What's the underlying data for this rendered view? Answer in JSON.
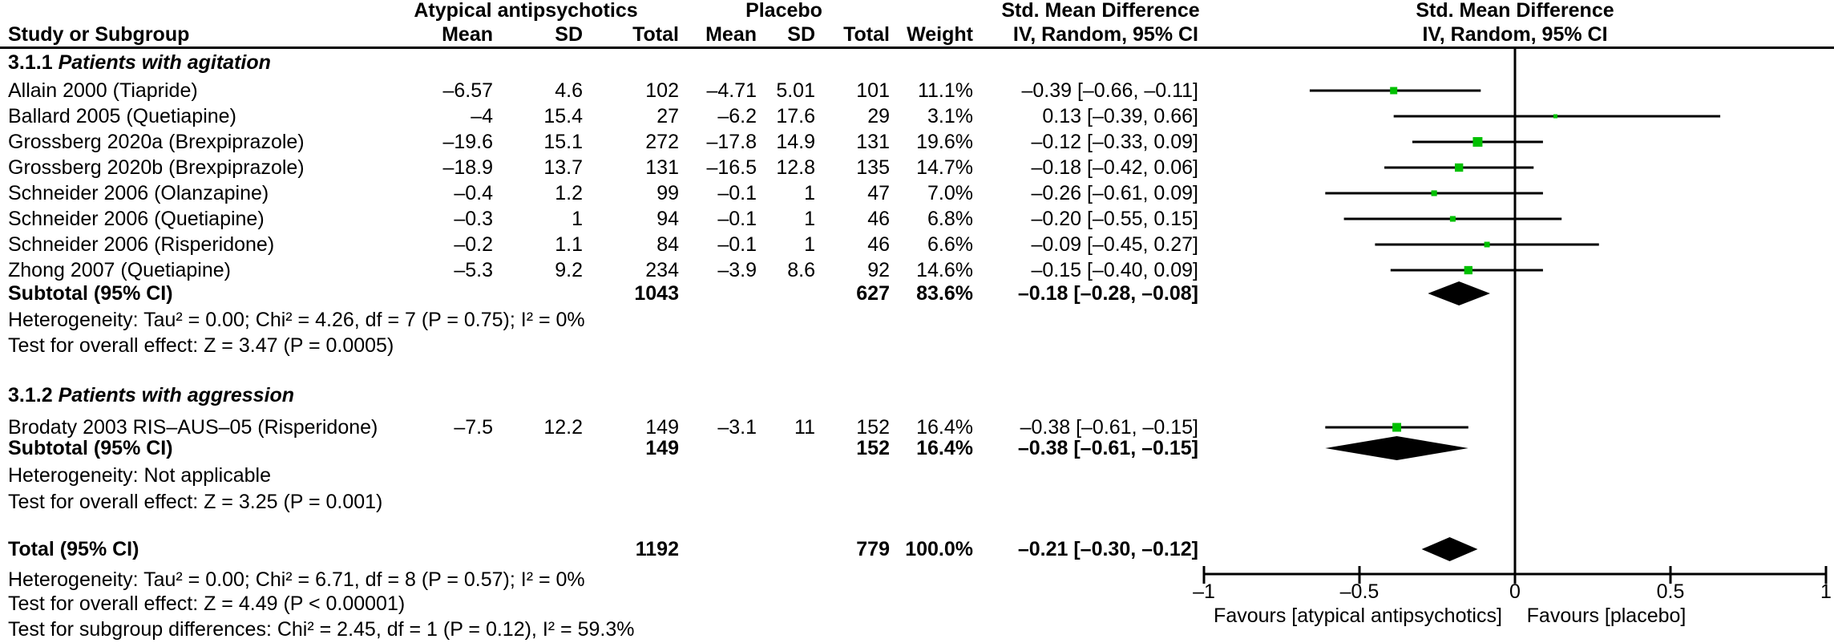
{
  "header": {
    "study_col": "Study or Subgroup",
    "group1": "Atypical antipsychotics",
    "group2": "Placebo",
    "mean": "Mean",
    "sd": "SD",
    "total": "Total",
    "weight": "Weight",
    "effect_line1": "Std. Mean Difference",
    "effect_line2": "IV, Random, 95% CI",
    "plot_line1": "Std. Mean Difference",
    "plot_line2": "IV, Random, 95% CI"
  },
  "rows": [
    {
      "kind": "section",
      "id": "3.1.1",
      "title": "Patients with agitation"
    },
    {
      "kind": "study",
      "label": "Allain 2000 (Tiapride)",
      "mean1": "–6.57",
      "sd1": "4.6",
      "total1": "102",
      "mean2": "–4.71",
      "sd2": "5.01",
      "total2": "101",
      "weight": "11.1%",
      "ci": "–0.39 [–0.66, –0.11]",
      "est": -0.39,
      "lo": -0.66,
      "hi": -0.11,
      "wpct": 11.1
    },
    {
      "kind": "study",
      "label": "Ballard 2005 (Quetiapine)",
      "mean1": "–4",
      "sd1": "15.4",
      "total1": "27",
      "mean2": "–6.2",
      "sd2": "17.6",
      "total2": "29",
      "weight": "3.1%",
      "ci": "0.13 [–0.39, 0.66]",
      "est": 0.13,
      "lo": -0.39,
      "hi": 0.66,
      "wpct": 3.1
    },
    {
      "kind": "study",
      "label": "Grossberg 2020a (Brexpiprazole)",
      "mean1": "–19.6",
      "sd1": "15.1",
      "total1": "272",
      "mean2": "–17.8",
      "sd2": "14.9",
      "total2": "131",
      "weight": "19.6%",
      "ci": "–0.12 [–0.33, 0.09]",
      "est": -0.12,
      "lo": -0.33,
      "hi": 0.09,
      "wpct": 19.6
    },
    {
      "kind": "study",
      "label": "Grossberg 2020b (Brexpiprazole)",
      "mean1": "–18.9",
      "sd1": "13.7",
      "total1": "131",
      "mean2": "–16.5",
      "sd2": "12.8",
      "total2": "135",
      "weight": "14.7%",
      "ci": "–0.18 [–0.42, 0.06]",
      "est": -0.18,
      "lo": -0.42,
      "hi": 0.06,
      "wpct": 14.7
    },
    {
      "kind": "study",
      "label": "Schneider 2006 (Olanzapine)",
      "mean1": "–0.4",
      "sd1": "1.2",
      "total1": "99",
      "mean2": "–0.1",
      "sd2": "1",
      "total2": "47",
      "weight": "7.0%",
      "ci": "–0.26 [–0.61, 0.09]",
      "est": -0.26,
      "lo": -0.61,
      "hi": 0.09,
      "wpct": 7.0
    },
    {
      "kind": "study",
      "label": "Schneider 2006 (Quetiapine)",
      "mean1": "–0.3",
      "sd1": "1",
      "total1": "94",
      "mean2": "–0.1",
      "sd2": "1",
      "total2": "46",
      "weight": "6.8%",
      "ci": "–0.20 [–0.55, 0.15]",
      "est": -0.2,
      "lo": -0.55,
      "hi": 0.15,
      "wpct": 6.8
    },
    {
      "kind": "study",
      "label": "Schneider 2006 (Risperidone)",
      "mean1": "–0.2",
      "sd1": "1.1",
      "total1": "84",
      "mean2": "–0.1",
      "sd2": "1",
      "total2": "46",
      "weight": "6.6%",
      "ci": "–0.09 [–0.45, 0.27]",
      "est": -0.09,
      "lo": -0.45,
      "hi": 0.27,
      "wpct": 6.6
    },
    {
      "kind": "study",
      "label": "Zhong 2007 (Quetiapine)",
      "mean1": "–5.3",
      "sd1": "9.2",
      "total1": "234",
      "mean2": "–3.9",
      "sd2": "8.6",
      "total2": "92",
      "weight": "14.6%",
      "ci": "–0.15 [–0.40, 0.09]",
      "est": -0.15,
      "lo": -0.4,
      "hi": 0.09,
      "wpct": 14.6
    },
    {
      "kind": "subtotal",
      "label": "Subtotal (95% CI)",
      "total1": "1043",
      "total2": "627",
      "weight": "83.6%",
      "ci": "–0.18 [–0.28, –0.08]",
      "est": -0.18,
      "lo": -0.28,
      "hi": -0.08
    },
    {
      "kind": "note",
      "text": "Heterogeneity: Tau² = 0.00; Chi² = 4.26, df = 7 (P = 0.75); I² = 0%"
    },
    {
      "kind": "note",
      "text": "Test for overall effect: Z = 3.47 (P = 0.0005)"
    },
    {
      "kind": "section",
      "id": "3.1.2",
      "title": "Patients with aggression"
    },
    {
      "kind": "study",
      "label": "Brodaty 2003 RIS–AUS–05 (Risperidone)",
      "mean1": "–7.5",
      "sd1": "12.2",
      "total1": "149",
      "mean2": "–3.1",
      "sd2": "11",
      "total2": "152",
      "weight": "16.4%",
      "ci": "–0.38 [–0.61, –0.15]",
      "est": -0.38,
      "lo": -0.61,
      "hi": -0.15,
      "wpct": 16.4
    },
    {
      "kind": "subtotal",
      "label": "Subtotal (95% CI)",
      "total1": "149",
      "total2": "152",
      "weight": "16.4%",
      "ci": "–0.38 [–0.61, –0.15]",
      "est": -0.38,
      "lo": -0.61,
      "hi": -0.15
    },
    {
      "kind": "note",
      "text": "Heterogeneity: Not applicable"
    },
    {
      "kind": "note",
      "text": "Test for overall effect: Z = 3.25 (P = 0.001)"
    },
    {
      "kind": "total",
      "label": "Total (95% CI)",
      "total1": "1192",
      "total2": "779",
      "weight": "100.0%",
      "ci": "–0.21 [–0.30, –0.12]",
      "est": -0.21,
      "lo": -0.3,
      "hi": -0.12
    },
    {
      "kind": "note",
      "text": "Heterogeneity: Tau² = 0.00; Chi² = 6.71, df = 8 (P = 0.57); I² = 0%"
    },
    {
      "kind": "note",
      "text": "Test for overall effect: Z = 4.49 (P < 0.00001)"
    },
    {
      "kind": "note",
      "text": "Test for subgroup differences: Chi² = 2.45, df = 1 (P = 0.12), I² = 59.3%"
    }
  ],
  "axis": {
    "ticks": [
      -1,
      -0.5,
      0,
      0.5,
      1
    ],
    "tick_labels": [
      "–1",
      "–0.5",
      "0",
      "0.5",
      "1"
    ],
    "favours_left": "Favours [atypical antipsychotics]",
    "favours_right": "Favours [placebo]"
  },
  "colors": {
    "marker": "#00C000",
    "ink": "#000000",
    "bg": "#ffffff"
  },
  "chart_data": {
    "type": "forest",
    "effect_measure": "Std. Mean Difference (IV, Random, 95% CI)",
    "xlim": [
      -1,
      1
    ],
    "x_ticks": [
      -1,
      -0.5,
      0,
      0.5,
      1
    ],
    "favours": [
      "Favours [atypical antipsychotics]",
      "Favours [placebo]"
    ],
    "subgroups": [
      {
        "name": "3.1.1 Patients with agitation",
        "studies": [
          {
            "study": "Allain 2000 (Tiapride)",
            "mean_t": -6.57,
            "sd_t": 4.6,
            "n_t": 102,
            "mean_p": -4.71,
            "sd_p": 5.01,
            "n_p": 101,
            "weight_pct": 11.1,
            "smd": -0.39,
            "ci": [
              -0.66,
              -0.11
            ]
          },
          {
            "study": "Ballard 2005 (Quetiapine)",
            "mean_t": -4,
            "sd_t": 15.4,
            "n_t": 27,
            "mean_p": -6.2,
            "sd_p": 17.6,
            "n_p": 29,
            "weight_pct": 3.1,
            "smd": 0.13,
            "ci": [
              -0.39,
              0.66
            ]
          },
          {
            "study": "Grossberg 2020a (Brexpiprazole)",
            "mean_t": -19.6,
            "sd_t": 15.1,
            "n_t": 272,
            "mean_p": -17.8,
            "sd_p": 14.9,
            "n_p": 131,
            "weight_pct": 19.6,
            "smd": -0.12,
            "ci": [
              -0.33,
              0.09
            ]
          },
          {
            "study": "Grossberg 2020b (Brexpiprazole)",
            "mean_t": -18.9,
            "sd_t": 13.7,
            "n_t": 131,
            "mean_p": -16.5,
            "sd_p": 12.8,
            "n_p": 135,
            "weight_pct": 14.7,
            "smd": -0.18,
            "ci": [
              -0.42,
              0.06
            ]
          },
          {
            "study": "Schneider 2006 (Olanzapine)",
            "mean_t": -0.4,
            "sd_t": 1.2,
            "n_t": 99,
            "mean_p": -0.1,
            "sd_p": 1,
            "n_p": 47,
            "weight_pct": 7.0,
            "smd": -0.26,
            "ci": [
              -0.61,
              0.09
            ]
          },
          {
            "study": "Schneider 2006 (Quetiapine)",
            "mean_t": -0.3,
            "sd_t": 1,
            "n_t": 94,
            "mean_p": -0.1,
            "sd_p": 1,
            "n_p": 46,
            "weight_pct": 6.8,
            "smd": -0.2,
            "ci": [
              -0.55,
              0.15
            ]
          },
          {
            "study": "Schneider 2006 (Risperidone)",
            "mean_t": -0.2,
            "sd_t": 1.1,
            "n_t": 84,
            "mean_p": -0.1,
            "sd_p": 1,
            "n_p": 46,
            "weight_pct": 6.6,
            "smd": -0.09,
            "ci": [
              -0.45,
              0.27
            ]
          },
          {
            "study": "Zhong 2007 (Quetiapine)",
            "mean_t": -5.3,
            "sd_t": 9.2,
            "n_t": 234,
            "mean_p": -3.9,
            "sd_p": 8.6,
            "n_p": 92,
            "weight_pct": 14.6,
            "smd": -0.15,
            "ci": [
              -0.4,
              0.09
            ]
          }
        ],
        "subtotal": {
          "n_t": 1043,
          "n_p": 627,
          "weight_pct": 83.6,
          "smd": -0.18,
          "ci": [
            -0.28,
            -0.08
          ]
        },
        "heterogeneity": "Tau² = 0.00; Chi² = 4.26, df = 7 (P = 0.75); I² = 0%",
        "overall_effect": "Z = 3.47 (P = 0.0005)"
      },
      {
        "name": "3.1.2 Patients with aggression",
        "studies": [
          {
            "study": "Brodaty 2003 RIS–AUS–05 (Risperidone)",
            "mean_t": -7.5,
            "sd_t": 12.2,
            "n_t": 149,
            "mean_p": -3.1,
            "sd_p": 11,
            "n_p": 152,
            "weight_pct": 16.4,
            "smd": -0.38,
            "ci": [
              -0.61,
              -0.15
            ]
          }
        ],
        "subtotal": {
          "n_t": 149,
          "n_p": 152,
          "weight_pct": 16.4,
          "smd": -0.38,
          "ci": [
            -0.61,
            -0.15
          ]
        },
        "heterogeneity": "Not applicable",
        "overall_effect": "Z = 3.25 (P = 0.001)"
      }
    ],
    "total": {
      "n_t": 1192,
      "n_p": 779,
      "weight_pct": 100.0,
      "smd": -0.21,
      "ci": [
        -0.3,
        -0.12
      ],
      "heterogeneity": "Tau² = 0.00; Chi² = 6.71, df = 8 (P = 0.57); I² = 0%",
      "overall_effect": "Z = 4.49 (P < 0.00001)",
      "subgroup_differences": "Chi² = 2.45, df = 1 (P = 0.12), I² = 59.3%"
    }
  }
}
